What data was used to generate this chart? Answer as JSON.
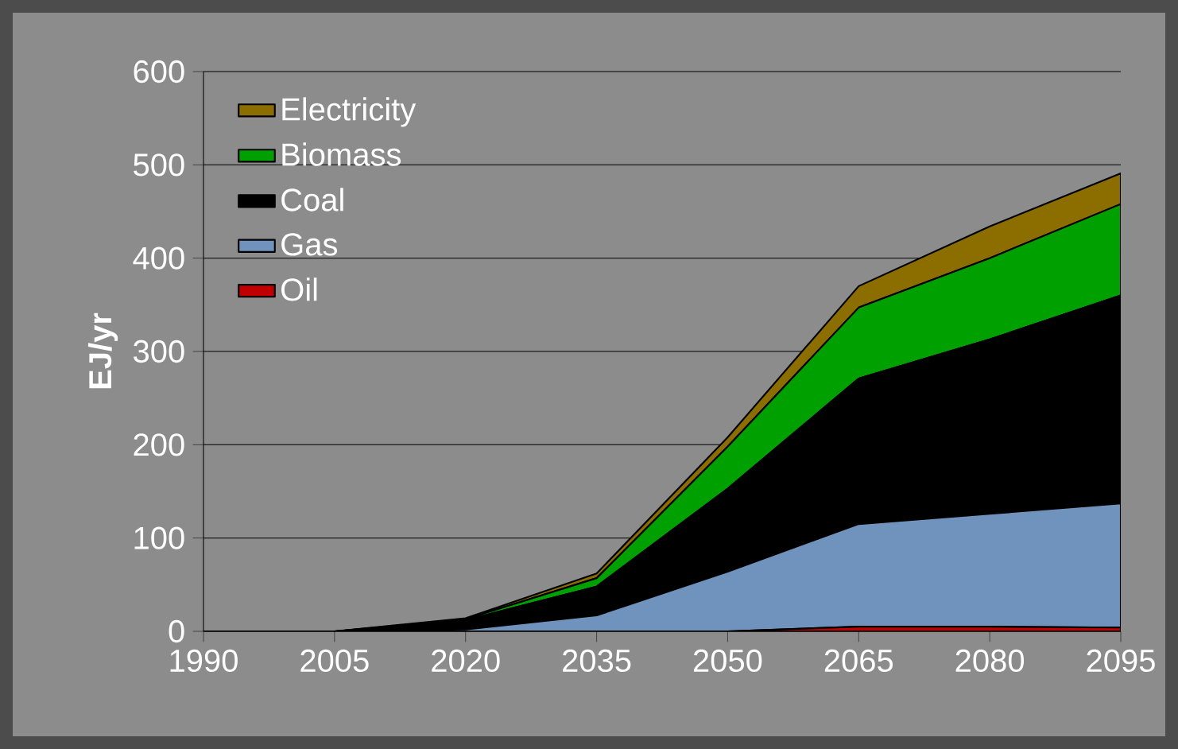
{
  "chart_data": {
    "type": "area",
    "stacked": true,
    "ylabel": "EJ/yr",
    "x": [
      1990,
      2005,
      2020,
      2035,
      2050,
      2065,
      2080,
      2095
    ],
    "xlim": [
      1990,
      2095
    ],
    "xticks": [
      1990,
      2005,
      2020,
      2035,
      2050,
      2065,
      2080,
      2095
    ],
    "ylim": [
      0,
      600
    ],
    "yticks": [
      0,
      100,
      200,
      300,
      400,
      500,
      600
    ],
    "grid": "y",
    "legend": "top left",
    "series": [
      {
        "name": "Oil",
        "color": "#c00000",
        "values": [
          0,
          0,
          0,
          0,
          0,
          5,
          5,
          4
        ]
      },
      {
        "name": "Gas",
        "color": "#6f93bd",
        "values": [
          0,
          0,
          2,
          17,
          64,
          110,
          121,
          133
        ]
      },
      {
        "name": "Coal",
        "color": "#000000",
        "values": [
          0,
          0,
          10,
          31,
          89,
          156,
          187,
          223
        ]
      },
      {
        "name": "Biomass",
        "color": "#00a000",
        "values": [
          0,
          0,
          1,
          9,
          45,
          76,
          87,
          98
        ]
      },
      {
        "name": "Electricity",
        "color": "#8b6d00",
        "values": [
          0,
          0,
          1,
          5,
          10,
          23,
          34,
          33
        ]
      }
    ]
  }
}
